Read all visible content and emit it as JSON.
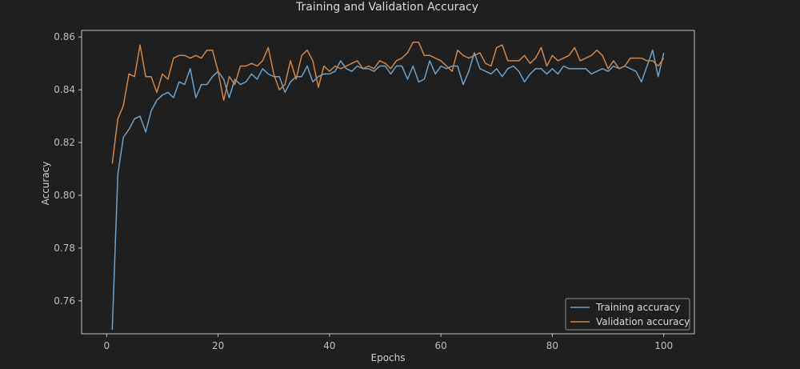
{
  "chart_data": {
    "type": "line",
    "title": "Training and Validation Accuracy",
    "xlabel": "Epochs",
    "ylabel": "Accuracy",
    "xlim": [
      -4.5,
      105.5
    ],
    "ylim": [
      0.7475,
      0.8625
    ],
    "xticks": [
      0,
      20,
      40,
      60,
      80,
      100
    ],
    "yticks": [
      0.76,
      0.78,
      0.8,
      0.82,
      0.84,
      0.86
    ],
    "grid": false,
    "legend_position": "lower-right",
    "x": [
      1,
      2,
      3,
      4,
      5,
      6,
      7,
      8,
      9,
      10,
      11,
      12,
      13,
      14,
      15,
      16,
      17,
      18,
      19,
      20,
      21,
      22,
      23,
      24,
      25,
      26,
      27,
      28,
      29,
      30,
      31,
      32,
      33,
      34,
      35,
      36,
      37,
      38,
      39,
      40,
      41,
      42,
      43,
      44,
      45,
      46,
      47,
      48,
      49,
      50,
      51,
      52,
      53,
      54,
      55,
      56,
      57,
      58,
      59,
      60,
      61,
      62,
      63,
      64,
      65,
      66,
      67,
      68,
      69,
      70,
      71,
      72,
      73,
      74,
      75,
      76,
      77,
      78,
      79,
      80,
      81,
      82,
      83,
      84,
      85,
      86,
      87,
      88,
      89,
      90,
      91,
      92,
      93,
      94,
      95,
      96,
      97,
      98,
      99,
      100
    ],
    "series": [
      {
        "name": "Training accuracy",
        "color": "#6f9fc6",
        "values": [
          0.749,
          0.808,
          0.822,
          0.825,
          0.829,
          0.83,
          0.824,
          0.832,
          0.836,
          0.838,
          0.839,
          0.837,
          0.843,
          0.842,
          0.848,
          0.837,
          0.842,
          0.842,
          0.845,
          0.847,
          0.844,
          0.837,
          0.844,
          0.842,
          0.843,
          0.846,
          0.844,
          0.848,
          0.846,
          0.845,
          0.845,
          0.839,
          0.843,
          0.845,
          0.845,
          0.849,
          0.843,
          0.845,
          0.846,
          0.846,
          0.847,
          0.851,
          0.848,
          0.847,
          0.849,
          0.848,
          0.848,
          0.847,
          0.849,
          0.849,
          0.846,
          0.849,
          0.849,
          0.844,
          0.849,
          0.843,
          0.844,
          0.851,
          0.846,
          0.849,
          0.848,
          0.849,
          0.849,
          0.842,
          0.847,
          0.854,
          0.848,
          0.847,
          0.846,
          0.848,
          0.845,
          0.848,
          0.849,
          0.847,
          0.843,
          0.846,
          0.848,
          0.848,
          0.846,
          0.848,
          0.846,
          0.849,
          0.848,
          0.848,
          0.848,
          0.848,
          0.846,
          0.847,
          0.848,
          0.847,
          0.849,
          0.848,
          0.849,
          0.848,
          0.847,
          0.843,
          0.849,
          0.855,
          0.845,
          0.854
        ]
      },
      {
        "name": "Validation accuracy",
        "color": "#c9864e",
        "values": [
          0.812,
          0.829,
          0.834,
          0.846,
          0.845,
          0.857,
          0.845,
          0.845,
          0.839,
          0.846,
          0.844,
          0.852,
          0.853,
          0.853,
          0.852,
          0.853,
          0.852,
          0.855,
          0.855,
          0.847,
          0.836,
          0.845,
          0.842,
          0.849,
          0.849,
          0.85,
          0.849,
          0.851,
          0.856,
          0.846,
          0.84,
          0.842,
          0.851,
          0.844,
          0.853,
          0.855,
          0.851,
          0.841,
          0.849,
          0.847,
          0.849,
          0.848,
          0.849,
          0.85,
          0.851,
          0.848,
          0.849,
          0.848,
          0.851,
          0.85,
          0.848,
          0.851,
          0.852,
          0.854,
          0.858,
          0.858,
          0.853,
          0.853,
          0.852,
          0.851,
          0.849,
          0.847,
          0.855,
          0.853,
          0.852,
          0.853,
          0.854,
          0.85,
          0.849,
          0.856,
          0.857,
          0.851,
          0.851,
          0.851,
          0.853,
          0.85,
          0.852,
          0.856,
          0.849,
          0.853,
          0.851,
          0.852,
          0.853,
          0.856,
          0.851,
          0.852,
          0.853,
          0.855,
          0.853,
          0.848,
          0.851,
          0.848,
          0.849,
          0.852,
          0.852,
          0.852,
          0.851,
          0.851,
          0.849,
          0.852
        ]
      }
    ]
  }
}
